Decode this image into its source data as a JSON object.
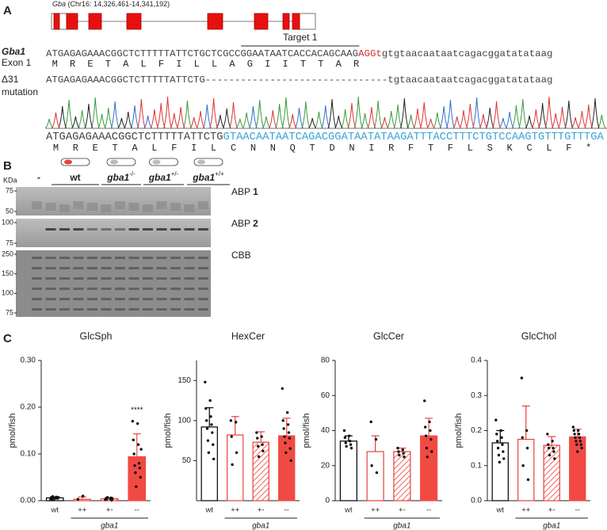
{
  "panel_a": {
    "label": "A",
    "gene_name": "Gba",
    "gene_locus": "(Chr16: 14,326,461-14,341,192)",
    "target": "Target 1",
    "wt_label": "Gba1",
    "exon_label": "Exon 1",
    "wt_seq": {
      "pre": "ATGAGAGAAACGGCTCTTTTTATTCTGCTCGCC",
      "target": "GGAATAATCACCACAGCAAG",
      "pam": "AGGt",
      "post": "gtgtaacaataatcagacggatatataag"
    },
    "wt_protein": [
      "M",
      "R",
      "E",
      "T",
      "A",
      "L",
      "F",
      "I",
      "L",
      "L",
      "A",
      "G",
      "I",
      "I",
      "T",
      "T",
      "A",
      "R"
    ],
    "mut_label": "Δ31",
    "mut_label2": "mutation",
    "mut_seq": {
      "pre": "ATGAGAGAAACGGCTCTTTTTATTCTG",
      "gap": "-------------------------------",
      "post": "tgtaacaataatcagacggatatataag"
    },
    "chrom_seq": {
      "same": "ATGAGAGAAACGGCTCTTTTTATTCTG",
      "changed": "GTAACAATAATCAGACGGATAATATAAGATTTACCTTTCTGTCCAAGTGTTTGTTTGA"
    },
    "chrom_protein": {
      "same": [
        "M",
        "R",
        "E",
        "T",
        "A",
        "L",
        "F",
        "I",
        "L"
      ],
      "changed": [
        "C",
        "N",
        "N",
        "Q",
        "T",
        "D",
        "N",
        "I",
        "R",
        "F",
        "T",
        "F",
        "L",
        "S",
        "K",
        "C",
        "L",
        "F",
        "*"
      ]
    }
  },
  "panel_b": {
    "label": "B",
    "unit": "KDa",
    "lanes": [
      {
        "name": "-"
      },
      {
        "name": "wt"
      },
      {
        "name": "gba1",
        "genotype": "-/-"
      },
      {
        "name": "gba1",
        "genotype": "+/-"
      },
      {
        "name": "gba1",
        "genotype": "+/+"
      }
    ],
    "gels": [
      {
        "name": "ABP",
        "number": "1",
        "markers": [
          "75",
          "50"
        ]
      },
      {
        "name": "ABP",
        "number": "2",
        "markers": [
          "100",
          "75"
        ]
      },
      {
        "name": "CBB",
        "markers": [
          "250",
          "150",
          "100",
          "75"
        ]
      }
    ]
  },
  "panel_c": {
    "label": "C"
  },
  "chart_data": [
    {
      "type": "bar",
      "title": "GlcSph",
      "ylabel": "pmol/fish",
      "categories": [
        "wt",
        "++",
        "+-",
        "--"
      ],
      "group_label": "gba1",
      "values": [
        0.006,
        0.003,
        0.004,
        0.094
      ],
      "errors": [
        0.002,
        0.005,
        0.003,
        0.049
      ],
      "significance": [
        null,
        null,
        null,
        "****"
      ],
      "points": [
        [
          0.003,
          0.005,
          0.007,
          0.008,
          0.004,
          0.006,
          0.009,
          0.005,
          0.002,
          0.007
        ],
        [
          0.003,
          0.01
        ],
        [
          0.002,
          0.004,
          0.005,
          0.006,
          0.003,
          0.001,
          0.007,
          0.004
        ],
        [
          0.17,
          0.165,
          0.13,
          0.12,
          0.1,
          0.08,
          0.075,
          0.07,
          0.06,
          0.05,
          0.03,
          0.11
        ]
      ],
      "ylim": [
        0,
        0.3
      ],
      "yticks": [
        {
          "value": 0,
          "label": "0.00"
        },
        {
          "value": 0.1,
          "label": "0.10"
        },
        {
          "value": 0.2,
          "label": "0.20"
        },
        {
          "value": 0.3,
          "label": "0.30"
        }
      ],
      "bar_styles": [
        {
          "fill": "#ffffff",
          "stroke": "#000000"
        },
        {
          "fill": "#ffffff",
          "stroke": "#e8403a"
        },
        {
          "fill": "hatch",
          "stroke": "#e8403a"
        },
        {
          "fill": "#f04a43",
          "stroke": "#f04a43"
        }
      ]
    },
    {
      "type": "bar",
      "title": "HexCer",
      "ylabel": "pmol/fish",
      "categories": [
        "wt",
        "++",
        "+-",
        "--"
      ],
      "group_label": "gba1",
      "values": [
        92,
        82,
        73,
        81
      ],
      "errors": [
        24,
        23,
        13,
        22
      ],
      "significance": [
        null,
        null,
        null,
        null
      ],
      "points": [
        [
          148,
          125,
          115,
          105,
          100,
          95,
          90,
          85,
          75,
          70,
          60,
          52
        ],
        [
          100,
          98,
          80,
          60,
          45
        ],
        [
          85,
          80,
          78,
          70,
          68,
          62,
          55
        ],
        [
          140,
          110,
          100,
          95,
          90,
          85,
          80,
          78,
          72,
          65,
          60,
          50
        ]
      ],
      "ylim": [
        0,
        175
      ],
      "yticks": [
        50,
        100,
        150
      ],
      "bar_styles": [
        {
          "fill": "#ffffff",
          "stroke": "#000000"
        },
        {
          "fill": "#ffffff",
          "stroke": "#e8403a"
        },
        {
          "fill": "hatch",
          "stroke": "#e8403a"
        },
        {
          "fill": "#f04a43",
          "stroke": "#f04a43"
        }
      ]
    },
    {
      "type": "bar",
      "title": "GlcCer",
      "ylabel": "pmol/fish",
      "categories": [
        "wt",
        "++",
        "+-",
        "--"
      ],
      "group_label": "gba1",
      "values": [
        34,
        28,
        28,
        37
      ],
      "errors": [
        3,
        9,
        2,
        10
      ],
      "significance": [
        null,
        null,
        null,
        null
      ],
      "points": [
        [
          40,
          37,
          36,
          34,
          33,
          32,
          31,
          30
        ],
        [
          45,
          35,
          20,
          16
        ],
        [
          30,
          29,
          28,
          27,
          26,
          25
        ],
        [
          57,
          45,
          42,
          40,
          37,
          35,
          30,
          28,
          25
        ]
      ],
      "ylim": [
        0,
        80
      ],
      "yticks": [
        0,
        20,
        40,
        60,
        80
      ],
      "bar_styles": [
        {
          "fill": "#ffffff",
          "stroke": "#000000"
        },
        {
          "fill": "#ffffff",
          "stroke": "#e8403a"
        },
        {
          "fill": "hatch",
          "stroke": "#e8403a"
        },
        {
          "fill": "#f04a43",
          "stroke": "#f04a43"
        }
      ]
    },
    {
      "type": "bar",
      "title": "GlcChol",
      "ylabel": "pmol/fish",
      "categories": [
        "wt",
        "++",
        "+-",
        "--"
      ],
      "group_label": "gba1",
      "values": [
        0.165,
        0.175,
        0.158,
        0.182
      ],
      "errors": [
        0.035,
        0.095,
        0.025,
        0.022
      ],
      "significance": [
        null,
        null,
        null,
        null
      ],
      "points": [
        [
          0.23,
          0.2,
          0.19,
          0.18,
          0.17,
          0.16,
          0.15,
          0.14,
          0.13,
          0.12,
          0.11
        ],
        [
          0.35,
          0.2,
          0.18,
          0.15,
          0.1,
          0.06
        ],
        [
          0.19,
          0.17,
          0.16,
          0.15,
          0.15,
          0.14,
          0.13,
          0.12
        ],
        [
          0.21,
          0.2,
          0.2,
          0.19,
          0.19,
          0.18,
          0.18,
          0.17,
          0.17,
          0.16,
          0.16,
          0.15,
          0.14
        ]
      ],
      "ylim": [
        0,
        0.4
      ],
      "yticks": [
        {
          "value": 0,
          "label": "0.0"
        },
        0.1,
        0.2,
        0.3,
        0.4
      ],
      "bar_styles": [
        {
          "fill": "#ffffff",
          "stroke": "#000000"
        },
        {
          "fill": "#ffffff",
          "stroke": "#e8403a"
        },
        {
          "fill": "hatch",
          "stroke": "#e8403a"
        },
        {
          "fill": "#f04a43",
          "stroke": "#f04a43"
        }
      ]
    }
  ]
}
